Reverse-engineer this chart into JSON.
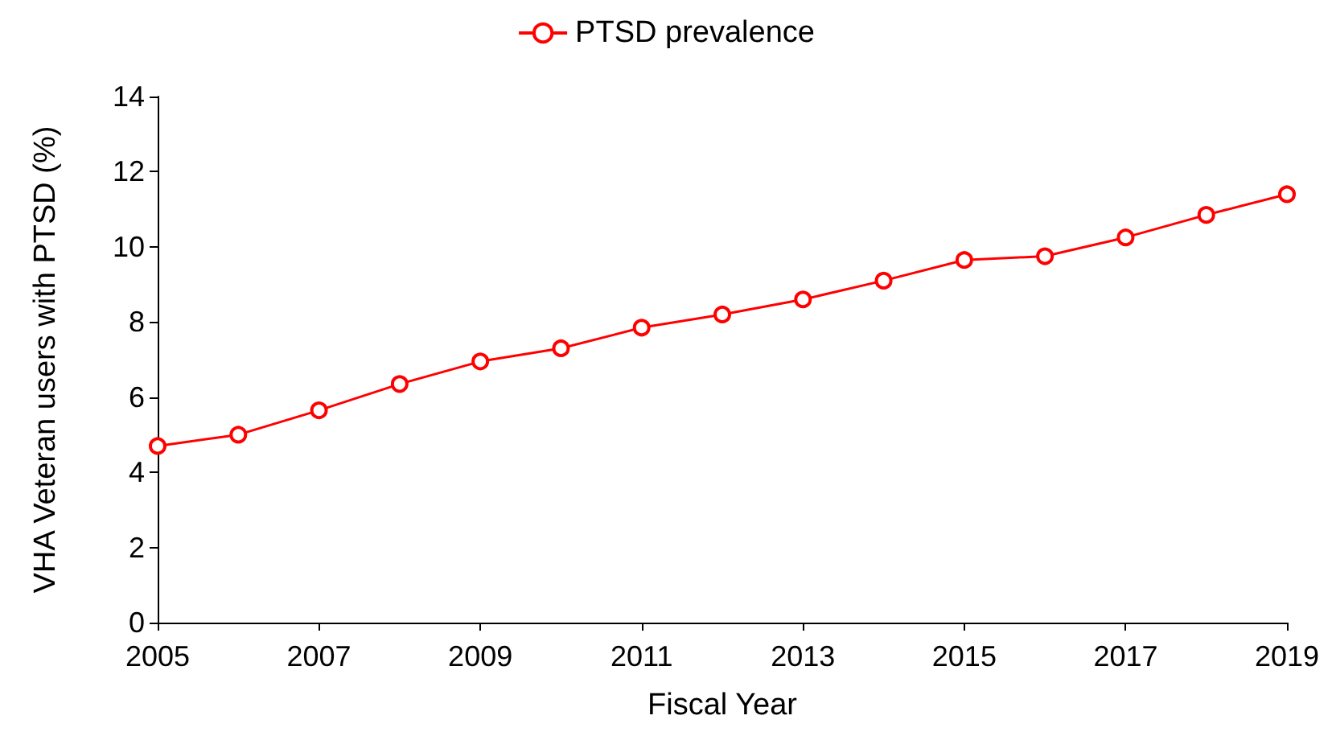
{
  "chart_data": {
    "type": "line",
    "xlabel": "Fiscal Year",
    "ylabel": "VHA Veteran users with PTSD (%)",
    "x": [
      2005,
      2006,
      2007,
      2008,
      2009,
      2010,
      2011,
      2012,
      2013,
      2014,
      2015,
      2016,
      2017,
      2018,
      2019
    ],
    "series": [
      {
        "name": "PTSD prevalence",
        "color": "#ff0000",
        "values": [
          4.7,
          5.0,
          5.65,
          6.35,
          6.95,
          7.3,
          7.85,
          8.2,
          8.6,
          9.1,
          9.65,
          9.75,
          10.25,
          10.85,
          11.4
        ]
      }
    ],
    "xlim": [
      2005,
      2019
    ],
    "xticks": [
      2005,
      2007,
      2009,
      2011,
      2013,
      2015,
      2017,
      2019
    ],
    "ylim": [
      0,
      14
    ],
    "yticks": [
      0,
      2,
      4,
      6,
      8,
      10,
      12,
      14
    ],
    "grid": false,
    "legend": "top",
    "marker": "circle",
    "line_style": "solid"
  }
}
